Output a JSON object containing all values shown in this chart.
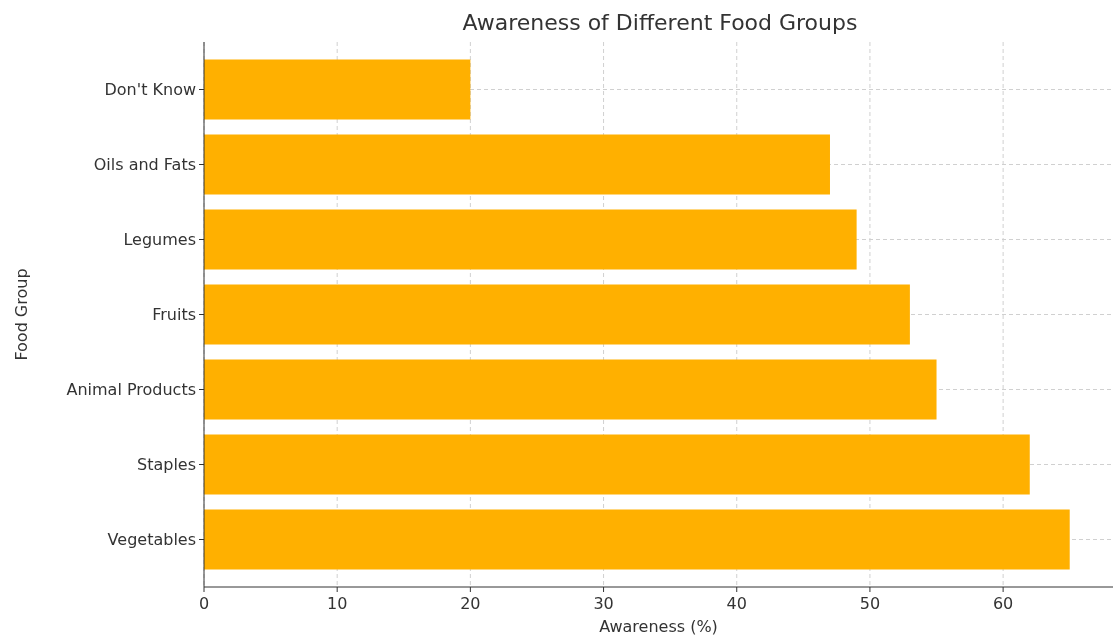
{
  "chart_data": {
    "type": "bar",
    "orientation": "horizontal",
    "title": "Awareness of Different Food Groups",
    "xlabel": "Awareness (%)",
    "ylabel": "Food Group",
    "categories": [
      "Don't Know",
      "Oils and Fats",
      "Legumes",
      "Fruits",
      "Animal Products",
      "Staples",
      "Vegetables"
    ],
    "values": [
      20,
      47,
      49,
      53,
      55,
      62,
      65
    ],
    "color": "#ffb000",
    "xlim": [
      0,
      68.25
    ],
    "xticks": [
      0,
      10,
      20,
      30,
      40,
      50,
      60
    ],
    "grid": true
  }
}
